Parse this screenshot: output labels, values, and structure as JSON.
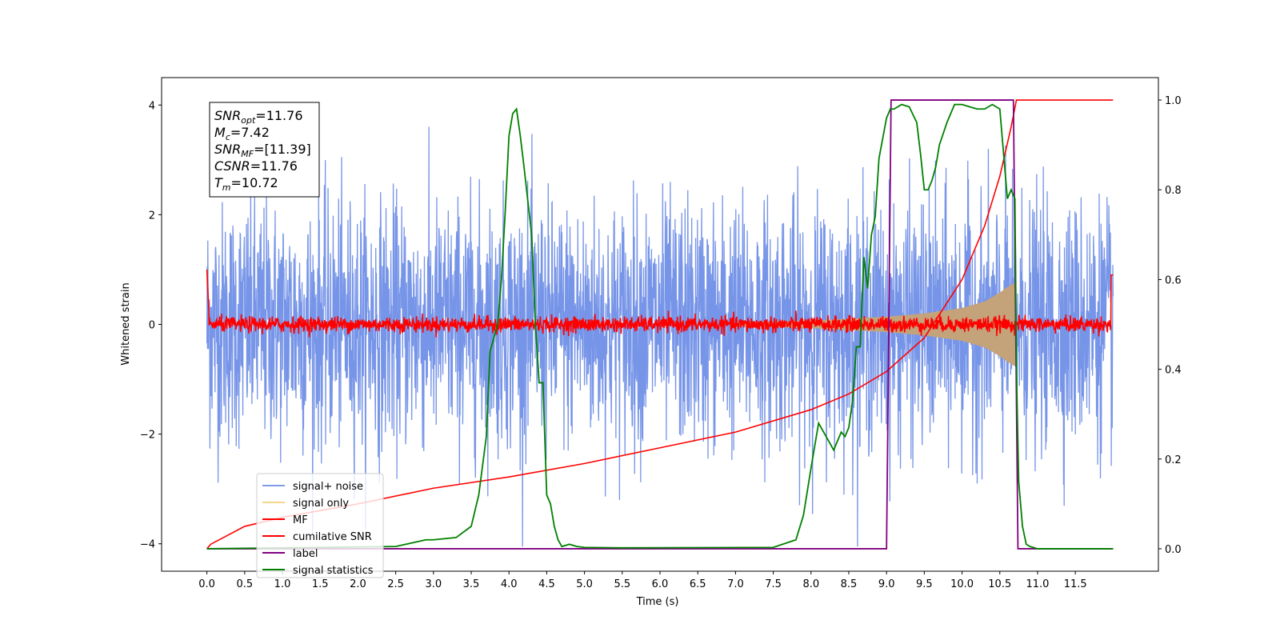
{
  "chart_data": {
    "type": "line",
    "xlabel": "Time (s)",
    "ylabel": "Whitened strain",
    "xlim": [
      -0.6,
      12.6
    ],
    "ylim": [
      -4.5,
      4.5
    ],
    "y2lim": [
      -0.05,
      1.05
    ],
    "xticks": [
      "0.0",
      "0.5",
      "1.0",
      "1.5",
      "2.0",
      "2.5",
      "3.0",
      "3.5",
      "4.0",
      "4.5",
      "5.0",
      "5.5",
      "6.0",
      "6.5",
      "7.0",
      "7.5",
      "8.0",
      "8.5",
      "9.0",
      "9.5",
      "10.0",
      "10.5",
      "11.0",
      "11.5"
    ],
    "yticks": [
      -4,
      -2,
      0,
      2,
      4
    ],
    "yticks_labels": [
      "−4",
      "−2",
      "0",
      "2",
      "4"
    ],
    "y2ticks": [
      "0.0",
      "0.2",
      "0.4",
      "0.6",
      "0.8",
      "1.0"
    ],
    "annotations": [
      {
        "var": "SNR",
        "sub": "opt",
        "value": "=11.76"
      },
      {
        "var": "M",
        "sub": "c",
        "value": "=7.42"
      },
      {
        "var": "SNR",
        "sub": "MF",
        "value": "=[11.39]"
      },
      {
        "var": "CSNR",
        "sub": "",
        "value": "=11.76"
      },
      {
        "var": "T",
        "sub": "m",
        "value": "=10.72"
      }
    ],
    "legend_position": "lower-left",
    "series": [
      {
        "name": "signal+ noise",
        "color": "#6b8ce6",
        "axis": "left",
        "description_noise_amplitude": 1.1
      },
      {
        "name": "signal only",
        "color": "#f3c76a",
        "axis": "left",
        "envelope": {
          "x": [
            7.0,
            8.0,
            9.0,
            9.5,
            10.0,
            10.3,
            10.5,
            10.6,
            10.72
          ],
          "amp": [
            0.03,
            0.07,
            0.14,
            0.2,
            0.3,
            0.42,
            0.58,
            0.68,
            0.78
          ]
        }
      },
      {
        "name": "MF",
        "color": "#ff0000",
        "axis": "left"
      },
      {
        "name": "cumilative SNR",
        "color": "#ff0000",
        "axis": "right",
        "x": [
          0.0,
          0.05,
          0.5,
          1.0,
          2.0,
          3.0,
          4.0,
          5.0,
          6.0,
          7.0,
          8.0,
          8.5,
          9.0,
          9.5,
          10.0,
          10.3,
          10.5,
          10.65,
          10.72,
          12.0
        ],
        "y": [
          0.0,
          0.01,
          0.05,
          0.07,
          0.1,
          0.135,
          0.16,
          0.19,
          0.225,
          0.26,
          0.31,
          0.345,
          0.395,
          0.47,
          0.6,
          0.72,
          0.83,
          0.94,
          1.0,
          1.0
        ]
      },
      {
        "name": "label",
        "color": "#800080",
        "axis": "right",
        "x": [
          0.0,
          9.0,
          9.06,
          10.68,
          10.74,
          12.0
        ],
        "y": [
          0.0,
          0.0,
          1.0,
          1.0,
          0.0,
          0.0
        ]
      },
      {
        "name": "signal statistics",
        "color": "#008000",
        "axis": "right",
        "x": [
          0.0,
          2.5,
          2.9,
          3.0,
          3.3,
          3.5,
          3.6,
          3.7,
          3.75,
          3.85,
          3.9,
          3.95,
          4.0,
          4.05,
          4.1,
          4.15,
          4.2,
          4.3,
          4.35,
          4.4,
          4.45,
          4.5,
          4.55,
          4.6,
          4.65,
          4.7,
          4.8,
          4.9,
          5.0,
          5.5,
          7.5,
          7.8,
          7.9,
          8.0,
          8.1,
          8.2,
          8.3,
          8.4,
          8.45,
          8.5,
          8.55,
          8.6,
          8.65,
          8.7,
          8.75,
          8.8,
          8.85,
          8.9,
          9.0,
          9.05,
          9.1,
          9.2,
          9.3,
          9.4,
          9.45,
          9.5,
          9.55,
          9.6,
          9.65,
          9.7,
          9.8,
          9.9,
          10.0,
          10.1,
          10.2,
          10.3,
          10.4,
          10.5,
          10.55,
          10.6,
          10.65,
          10.7,
          10.72,
          10.75,
          10.8,
          10.85,
          10.9,
          11.0,
          12.0
        ],
        "y": [
          0.0,
          0.005,
          0.02,
          0.02,
          0.025,
          0.05,
          0.12,
          0.25,
          0.44,
          0.5,
          0.6,
          0.75,
          0.92,
          0.97,
          0.98,
          0.92,
          0.85,
          0.7,
          0.5,
          0.37,
          0.37,
          0.12,
          0.1,
          0.05,
          0.02,
          0.005,
          0.01,
          0.005,
          0.003,
          0.002,
          0.003,
          0.02,
          0.075,
          0.18,
          0.28,
          0.25,
          0.22,
          0.26,
          0.25,
          0.27,
          0.33,
          0.45,
          0.45,
          0.65,
          0.58,
          0.7,
          0.74,
          0.87,
          0.96,
          0.98,
          0.98,
          0.99,
          0.985,
          0.95,
          0.88,
          0.8,
          0.8,
          0.82,
          0.85,
          0.9,
          0.95,
          0.99,
          0.99,
          0.985,
          0.98,
          0.98,
          0.99,
          0.98,
          0.88,
          0.78,
          0.8,
          0.78,
          0.4,
          0.15,
          0.05,
          0.01,
          0.005,
          0.0,
          0.0
        ]
      }
    ]
  }
}
